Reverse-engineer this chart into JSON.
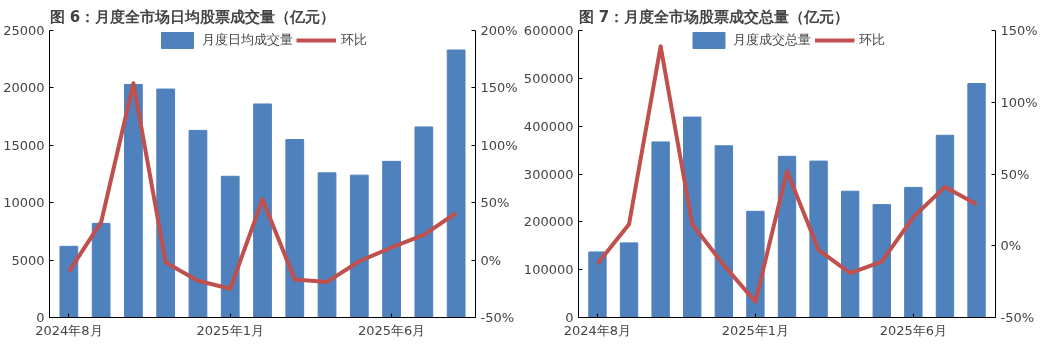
{
  "chart_data": [
    {
      "type": "bar",
      "title": "图 6：月度全市场日均股票成交量（亿元）",
      "categories": [
        "2024年8月",
        null,
        null,
        null,
        null,
        "2025年1月",
        null,
        null,
        null,
        null,
        "2025年6月",
        null,
        null
      ],
      "series": [
        {
          "name": "月度日均成交量",
          "color": "#4f81bd",
          "values": [
            6200,
            8200,
            20300,
            19900,
            16300,
            12300,
            18600,
            15500,
            12600,
            12400,
            13600,
            16600,
            23300
          ]
        },
        {
          "name": "环比",
          "type": "line",
          "axis": "y2",
          "color": "#c0504d",
          "values": [
            -10,
            33,
            154,
            -2,
            -18,
            -25,
            53,
            -17,
            -19,
            -1,
            11,
            22,
            41
          ]
        }
      ],
      "ylim": [
        0,
        25000
      ],
      "yticks": [
        0,
        5000,
        10000,
        15000,
        20000,
        25000
      ],
      "y2lim": [
        -50,
        200
      ],
      "y2ticks": [
        {
          "value": -50,
          "label": "-50%"
        },
        {
          "value": 0,
          "label": "0%"
        },
        {
          "value": 50,
          "label": "50%"
        },
        {
          "value": 100,
          "label": "100%"
        },
        {
          "value": 150,
          "label": "150%"
        },
        {
          "value": 200,
          "label": "200%"
        }
      ],
      "legend": "top",
      "marker": "none",
      "line_style": "solid"
    },
    {
      "type": "bar",
      "title": "图 7：月度全市场股票成交总量（亿元）",
      "categories": [
        "2024年8月",
        null,
        null,
        null,
        null,
        "2025年1月",
        null,
        null,
        null,
        null,
        "2025年6月",
        null,
        null
      ],
      "series": [
        {
          "name": "月度成交总量",
          "color": "#4f81bd",
          "values": [
            137000,
            156000,
            367000,
            419000,
            359000,
            222000,
            337000,
            327000,
            264000,
            236000,
            272000,
            381000,
            489000
          ]
        },
        {
          "name": "环比",
          "type": "line",
          "axis": "y2",
          "color": "#c0504d",
          "values": [
            -12.5,
            15,
            139,
            15,
            -13.5,
            -39,
            52,
            -3,
            -19,
            -11,
            20,
            41,
            29
          ]
        }
      ],
      "ylim": [
        0,
        600000
      ],
      "yticks": [
        0,
        100000,
        200000,
        300000,
        400000,
        500000,
        600000
      ],
      "y2lim": [
        -50,
        150
      ],
      "y2ticks": [
        {
          "value": -50,
          "label": "-50%"
        },
        {
          "value": 0,
          "label": "0%"
        },
        {
          "value": 50,
          "label": "50%"
        },
        {
          "value": 100,
          "label": "100%"
        },
        {
          "value": 150,
          "label": "150%"
        }
      ],
      "legend": "top",
      "marker": "none",
      "line_style": "solid"
    }
  ]
}
